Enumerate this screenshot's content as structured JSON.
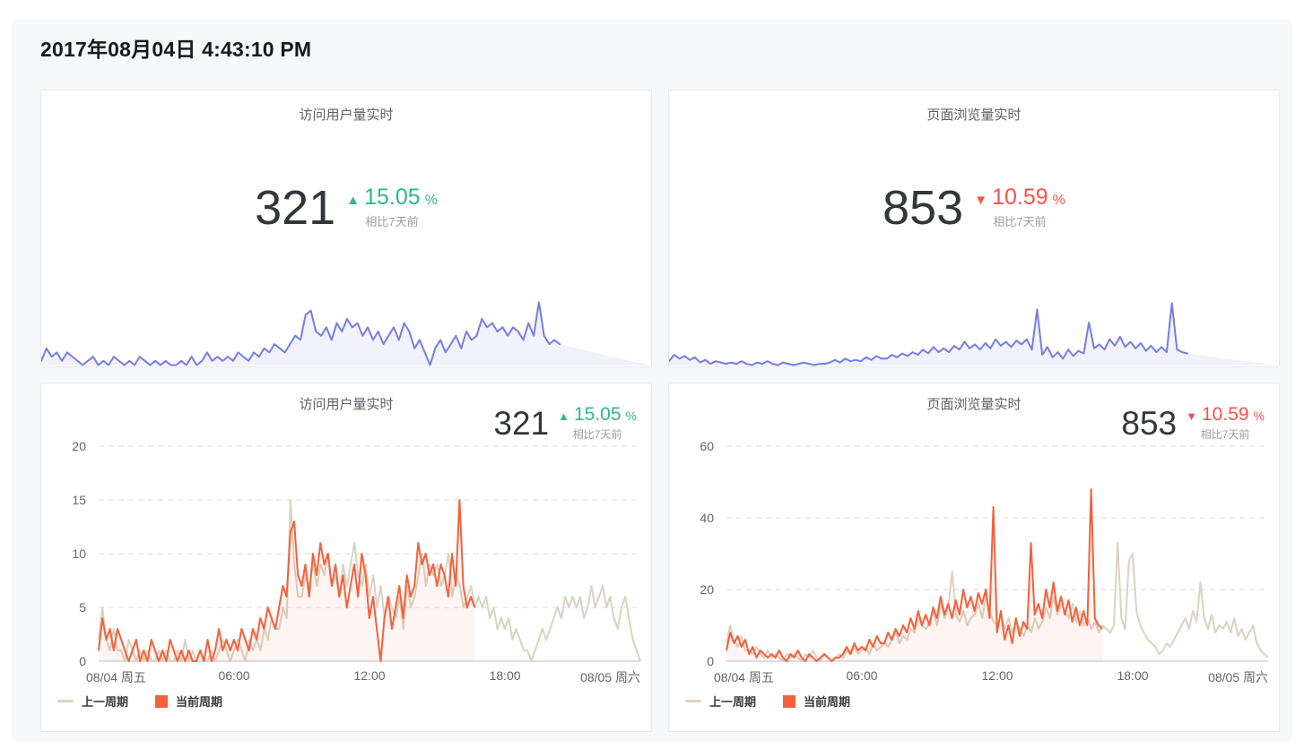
{
  "header": {
    "datetime": "2017年08月04日 4:43:10 PM"
  },
  "panels": {
    "uv_realtime": {
      "title": "访问用户量实时",
      "value": "321",
      "delta": "15.05",
      "delta_unit": "%",
      "delta_dir": "up",
      "compare_label": "相比7天前"
    },
    "pv_realtime": {
      "title": "页面浏览量实时",
      "value": "853",
      "delta": "10.59",
      "delta_unit": "%",
      "delta_dir": "down",
      "compare_label": "相比7天前"
    }
  },
  "legend": {
    "prev": "上一周期",
    "current": "当前周期"
  },
  "colors": {
    "up_green": "#2fb68c",
    "down_red": "#fb514a",
    "sparkline_blue": "#777de2",
    "prev_period_tan": "#d9d3c1",
    "current_period_orange": "#f5603c"
  },
  "chart_data": [
    {
      "id": "uv_spark",
      "type": "sparkline",
      "title": "访问用户量实时",
      "ymax": 16,
      "end_fraction": 0.85,
      "stroke": "#777de2",
      "fill": "rgba(119,125,226,0.10)",
      "values": [
        1,
        4,
        2,
        3,
        1,
        3,
        2,
        1,
        0,
        1,
        2,
        0,
        1,
        0,
        2,
        1,
        0,
        1,
        0,
        2,
        1,
        0,
        1,
        0,
        1,
        0,
        0,
        1,
        0,
        2,
        0,
        1,
        3,
        1,
        2,
        1,
        2,
        1,
        3,
        2,
        1,
        3,
        2,
        4,
        3,
        5,
        4,
        3,
        5,
        7,
        6,
        12,
        13,
        8,
        7,
        9,
        6,
        10,
        8,
        11,
        9,
        10,
        7,
        9,
        6,
        8,
        5,
        7,
        9,
        6,
        10,
        8,
        4,
        6,
        3,
        0,
        4,
        6,
        3,
        5,
        7,
        4,
        8,
        6,
        7,
        11,
        9,
        10,
        8,
        9,
        7,
        9,
        8,
        6,
        10,
        7,
        15,
        7,
        5,
        6,
        5
      ]
    },
    {
      "id": "pv_spark",
      "type": "sparkline",
      "title": "页面浏览量实时",
      "ymax": 52,
      "end_fraction": 0.85,
      "stroke": "#777de2",
      "fill": "rgba(119,125,226,0.10)",
      "values": [
        3,
        8,
        5,
        7,
        4,
        6,
        2,
        4,
        1,
        3,
        2,
        1,
        2,
        1,
        3,
        1,
        0,
        2,
        1,
        3,
        1,
        0,
        2,
        1,
        0,
        1,
        2,
        1,
        0,
        1,
        1,
        2,
        4,
        2,
        5,
        3,
        4,
        3,
        6,
        4,
        7,
        5,
        5,
        8,
        6,
        9,
        7,
        10,
        8,
        12,
        9,
        14,
        10,
        13,
        10,
        15,
        12,
        18,
        13,
        16,
        12,
        17,
        13,
        20,
        15,
        18,
        14,
        19,
        16,
        20,
        12,
        43,
        8,
        14,
        6,
        10,
        5,
        12,
        7,
        11,
        9,
        33,
        13,
        16,
        12,
        20,
        15,
        22,
        14,
        18,
        13,
        17,
        11,
        15,
        10,
        14,
        10,
        48,
        12,
        10,
        9
      ]
    },
    {
      "id": "uv_compare",
      "type": "compare",
      "title": "访问用户量实时",
      "ylim": [
        0,
        20
      ],
      "yticks": [
        0,
        5,
        10,
        15,
        20
      ],
      "xticks": [
        "08/04 周五",
        "06:00",
        "12:00",
        "18:00",
        "08/05 周六"
      ],
      "grid": "dashed",
      "series": [
        {
          "key": "prev",
          "name": "上一周期",
          "color": "#d9d3c1",
          "span": [
            0,
            1
          ],
          "values": [
            2,
            5,
            2,
            1,
            3,
            1,
            1,
            0,
            2,
            1,
            0,
            1,
            0,
            1,
            0,
            0,
            1,
            0,
            1,
            0,
            0,
            1,
            0,
            2,
            0,
            1,
            0,
            1,
            0,
            0,
            1,
            0,
            1,
            2,
            1,
            0,
            1,
            2,
            1,
            0,
            2,
            1,
            2,
            1,
            3,
            2,
            4,
            3,
            3,
            5,
            4,
            15,
            9,
            6,
            6,
            8,
            7,
            9,
            7,
            9,
            8,
            10,
            7,
            8,
            6,
            9,
            7,
            9,
            11,
            8,
            7,
            9,
            6,
            8,
            5,
            7,
            4,
            6,
            5,
            4,
            6,
            3,
            7,
            5,
            6,
            8,
            10,
            7,
            9,
            8,
            9,
            7,
            8,
            10,
            6,
            8,
            7,
            5,
            6,
            7,
            5,
            6,
            5,
            6,
            4,
            5,
            3,
            4,
            3,
            4,
            2,
            3,
            2,
            1,
            1,
            0,
            1,
            2,
            3,
            2,
            3,
            4,
            5,
            4,
            6,
            5,
            6,
            5,
            6,
            4,
            5,
            7,
            5,
            6,
            7,
            5,
            6,
            4,
            3,
            5,
            6,
            4,
            2,
            1,
            0
          ]
        },
        {
          "key": "current",
          "name": "当前周期",
          "color": "#f5603c",
          "fill": "rgba(245,96,60,0.07)",
          "span": [
            0,
            0.694
          ],
          "values": [
            1,
            4,
            2,
            3,
            1,
            3,
            2,
            1,
            0,
            1,
            2,
            0,
            1,
            0,
            2,
            1,
            0,
            1,
            0,
            2,
            1,
            0,
            1,
            0,
            1,
            0,
            0,
            1,
            0,
            2,
            0,
            1,
            3,
            1,
            2,
            1,
            2,
            1,
            3,
            2,
            1,
            3,
            2,
            4,
            3,
            5,
            4,
            3,
            5,
            7,
            6,
            12,
            13,
            8,
            7,
            9,
            6,
            10,
            8,
            11,
            9,
            10,
            7,
            9,
            6,
            8,
            5,
            7,
            9,
            6,
            10,
            8,
            4,
            6,
            3,
            0,
            4,
            6,
            3,
            5,
            7,
            4,
            8,
            6,
            7,
            11,
            9,
            10,
            8,
            9,
            7,
            9,
            8,
            6,
            10,
            7,
            15,
            7,
            5,
            6,
            5
          ]
        }
      ]
    },
    {
      "id": "pv_compare",
      "type": "compare",
      "title": "页面浏览量实时",
      "ylim": [
        0,
        60
      ],
      "yticks": [
        0,
        20,
        40,
        60
      ],
      "xticks": [
        "08/04 周五",
        "06:00",
        "12:00",
        "18:00",
        "08/05 周六"
      ],
      "grid": "dashed",
      "series": [
        {
          "key": "prev",
          "name": "上一周期",
          "color": "#d9d3c1",
          "span": [
            0,
            1
          ],
          "values": [
            5,
            10,
            6,
            4,
            7,
            3,
            3,
            2,
            4,
            2,
            1,
            3,
            1,
            2,
            1,
            0,
            2,
            1,
            2,
            1,
            0,
            2,
            1,
            3,
            1,
            0,
            2,
            1,
            0,
            1,
            2,
            1,
            3,
            2,
            4,
            2,
            3,
            4,
            2,
            5,
            3,
            4,
            5,
            4,
            6,
            8,
            5,
            7,
            6,
            9,
            8,
            12,
            10,
            9,
            11,
            14,
            10,
            16,
            12,
            15,
            25,
            13,
            11,
            14,
            10,
            12,
            13,
            16,
            12,
            18,
            14,
            11,
            10,
            13,
            9,
            12,
            8,
            11,
            9,
            7,
            10,
            8,
            12,
            9,
            11,
            15,
            12,
            18,
            13,
            16,
            14,
            12,
            16,
            11,
            14,
            10,
            12,
            9,
            11,
            8,
            10,
            9,
            8,
            10,
            33,
            12,
            9,
            28,
            30,
            14,
            10,
            8,
            6,
            5,
            4,
            2,
            3,
            5,
            4,
            6,
            8,
            10,
            12,
            9,
            14,
            11,
            22,
            12,
            9,
            13,
            8,
            10,
            9,
            11,
            8,
            12,
            7,
            9,
            6,
            8,
            10,
            5,
            3,
            2,
            1
          ]
        },
        {
          "key": "current",
          "name": "当前周期",
          "color": "#f5603c",
          "fill": "rgba(245,96,60,0.07)",
          "span": [
            0,
            0.694
          ],
          "values": [
            3,
            8,
            5,
            7,
            4,
            6,
            2,
            4,
            1,
            3,
            2,
            1,
            2,
            1,
            3,
            1,
            0,
            2,
            1,
            3,
            1,
            0,
            2,
            1,
            0,
            1,
            2,
            1,
            0,
            1,
            1,
            2,
            4,
            2,
            5,
            3,
            4,
            3,
            6,
            4,
            7,
            5,
            5,
            8,
            6,
            9,
            7,
            10,
            8,
            12,
            9,
            14,
            10,
            13,
            10,
            15,
            12,
            18,
            13,
            16,
            12,
            17,
            13,
            20,
            15,
            18,
            14,
            19,
            16,
            20,
            12,
            43,
            8,
            14,
            6,
            10,
            5,
            12,
            7,
            11,
            9,
            33,
            13,
            16,
            12,
            20,
            15,
            22,
            14,
            18,
            13,
            17,
            11,
            15,
            10,
            14,
            10,
            48,
            12,
            10,
            9
          ]
        }
      ]
    }
  ]
}
